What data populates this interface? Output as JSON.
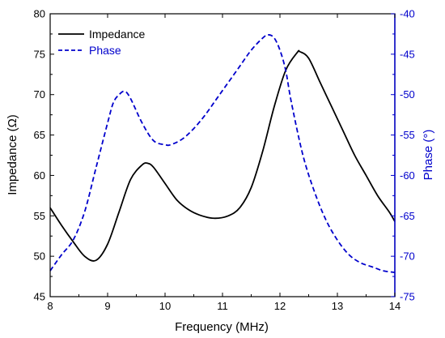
{
  "chart_data": {
    "type": "line",
    "xlabel": "Frequency (MHz)",
    "ylabel": "Impedance (Ω)",
    "y2label": "Phase (°)",
    "xlim": [
      8,
      14
    ],
    "ylim": [
      45,
      80
    ],
    "y2lim": [
      -75,
      -40
    ],
    "xticks": [
      8,
      9,
      10,
      11,
      12,
      13,
      14
    ],
    "yticks": [
      45,
      50,
      55,
      60,
      65,
      70,
      75,
      80
    ],
    "y2ticks": [
      -75,
      -70,
      -65,
      -60,
      -55,
      -50,
      -45,
      -40
    ],
    "grid": false,
    "legend_position": "top-left",
    "colors": {
      "impedance": "#000000",
      "phase": "#0000cc",
      "right_axis": "#0000cc"
    },
    "series": [
      {
        "name": "Impedance",
        "axis": "left",
        "style": "solid",
        "x": [
          8.0,
          8.2,
          8.4,
          8.6,
          8.8,
          9.0,
          9.2,
          9.4,
          9.6,
          9.7,
          9.8,
          10.0,
          10.2,
          10.4,
          10.6,
          10.85,
          11.1,
          11.3,
          11.5,
          11.7,
          11.9,
          12.1,
          12.3,
          12.35,
          12.5,
          12.7,
          12.9,
          13.1,
          13.3,
          13.5,
          13.7,
          13.9,
          14.0
        ],
        "y": [
          56.0,
          53.8,
          51.8,
          50.0,
          49.5,
          51.5,
          55.5,
          59.5,
          61.3,
          61.5,
          61.0,
          59.0,
          57.0,
          55.8,
          55.1,
          54.7,
          55.0,
          56.0,
          58.5,
          63.0,
          68.5,
          73.0,
          75.2,
          75.3,
          74.5,
          71.5,
          68.5,
          65.5,
          62.5,
          60.0,
          57.5,
          55.5,
          54.3
        ]
      },
      {
        "name": "Phase",
        "axis": "right",
        "style": "dashed",
        "x": [
          8.0,
          8.2,
          8.4,
          8.6,
          8.8,
          9.0,
          9.1,
          9.2,
          9.3,
          9.4,
          9.6,
          9.8,
          10.0,
          10.1,
          10.3,
          10.5,
          10.7,
          10.9,
          11.1,
          11.3,
          11.5,
          11.7,
          11.8,
          11.9,
          12.0,
          12.1,
          12.2,
          12.4,
          12.6,
          12.8,
          13.0,
          13.2,
          13.4,
          13.6,
          13.8,
          14.0
        ],
        "y": [
          -71.8,
          -69.8,
          -68.0,
          -64.5,
          -59.0,
          -53.5,
          -51.0,
          -50.0,
          -49.6,
          -50.5,
          -53.5,
          -55.7,
          -56.2,
          -56.2,
          -55.5,
          -54.2,
          -52.5,
          -50.5,
          -48.5,
          -46.5,
          -44.5,
          -43.0,
          -42.6,
          -43.0,
          -44.5,
          -47.0,
          -51.0,
          -57.5,
          -62.0,
          -65.5,
          -68.0,
          -69.8,
          -70.8,
          -71.3,
          -71.8,
          -72.0
        ]
      }
    ]
  }
}
